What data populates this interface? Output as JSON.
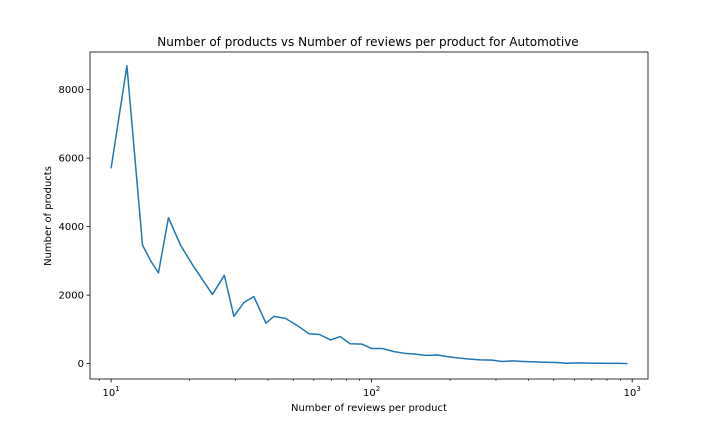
{
  "chart_data": {
    "type": "line",
    "title": "Number of products vs Number of reviews per product for  Automotive",
    "xlabel": "Number of reviews per product",
    "ylabel": "Number of products",
    "xscale": "log",
    "xlim": [
      8.3,
      1150
    ],
    "ylim": [
      -450,
      9100
    ],
    "xticks": [
      {
        "value": 10,
        "base": "10",
        "exp": "1"
      },
      {
        "value": 100,
        "base": "10",
        "exp": "2"
      },
      {
        "value": 1000,
        "base": "10",
        "exp": "3"
      }
    ],
    "yticks": [
      0,
      2000,
      4000,
      6000,
      8000
    ],
    "grid": false,
    "series": [
      {
        "color": "#1f77b4",
        "x": [
          10,
          11.5,
          13.2,
          14.2,
          15.2,
          16.6,
          18.5,
          20.6,
          24.5,
          27.2,
          29.6,
          32.3,
          35.3,
          39.3,
          42.2,
          46.7,
          52.6,
          57.5,
          63.1,
          69.6,
          75.8,
          82.6,
          91.7,
          100,
          110,
          122,
          134,
          146,
          161,
          179,
          196,
          218,
          239,
          262,
          290,
          316,
          348,
          383,
          422,
          464,
          510,
          560,
          620,
          680,
          750,
          825,
          900,
          960
        ],
        "y": [
          5700,
          8700,
          3460,
          3000,
          2650,
          4260,
          3450,
          2870,
          2020,
          2580,
          1380,
          1780,
          1960,
          1180,
          1380,
          1320,
          1080,
          870,
          850,
          690,
          790,
          580,
          570,
          440,
          440,
          350,
          300,
          280,
          240,
          250,
          200,
          160,
          130,
          110,
          100,
          60,
          80,
          60,
          50,
          40,
          30,
          10,
          20,
          15,
          10,
          5,
          5,
          0
        ]
      }
    ]
  }
}
